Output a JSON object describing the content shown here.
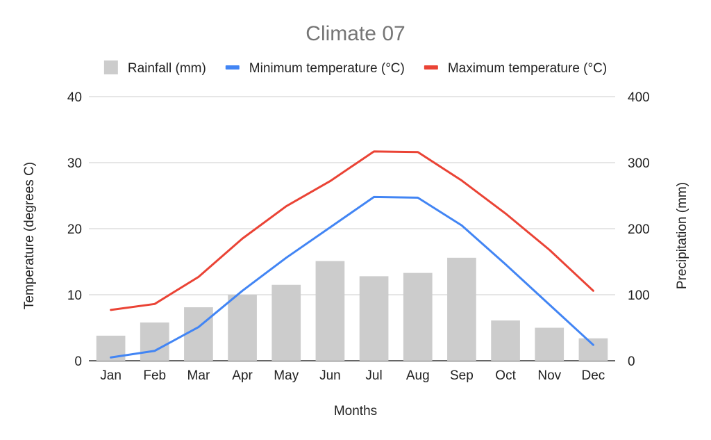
{
  "chart_data": {
    "type": "bar",
    "title": "Climate 07",
    "xlabel": "Months",
    "ylabel_left": "Temperature (degrees C)",
    "ylabel_right": "Precipitation (mm)",
    "categories": [
      "Jan",
      "Feb",
      "Mar",
      "Apr",
      "May",
      "Jun",
      "Jul",
      "Aug",
      "Sep",
      "Oct",
      "Nov",
      "Dec"
    ],
    "ylim_left": [
      0,
      40
    ],
    "ylim_right": [
      0,
      400
    ],
    "yticks_left": [
      "0",
      "10",
      "20",
      "30",
      "40"
    ],
    "yticks_right": [
      "0",
      "100",
      "200",
      "300",
      "400"
    ],
    "grid": true,
    "legend_position": "top",
    "series": [
      {
        "name": "Rainfall (mm)",
        "type": "bar",
        "axis": "right",
        "color": "#cccccc",
        "values": [
          38,
          58,
          81,
          100,
          115,
          151,
          128,
          133,
          156,
          61,
          50,
          34
        ]
      },
      {
        "name": "Minimum temperature (°C)",
        "type": "line",
        "axis": "left",
        "color": "#4285f4",
        "values": [
          0.5,
          1.5,
          5.1,
          10.6,
          15.6,
          20.2,
          24.8,
          24.7,
          20.5,
          14.6,
          8.5,
          2.4
        ]
      },
      {
        "name": "Maximum temperature (°C)",
        "type": "line",
        "axis": "left",
        "color": "#ea4335",
        "values": [
          7.7,
          8.6,
          12.7,
          18.5,
          23.4,
          27.2,
          31.7,
          31.6,
          27.3,
          22.3,
          16.8,
          10.6
        ]
      }
    ]
  }
}
